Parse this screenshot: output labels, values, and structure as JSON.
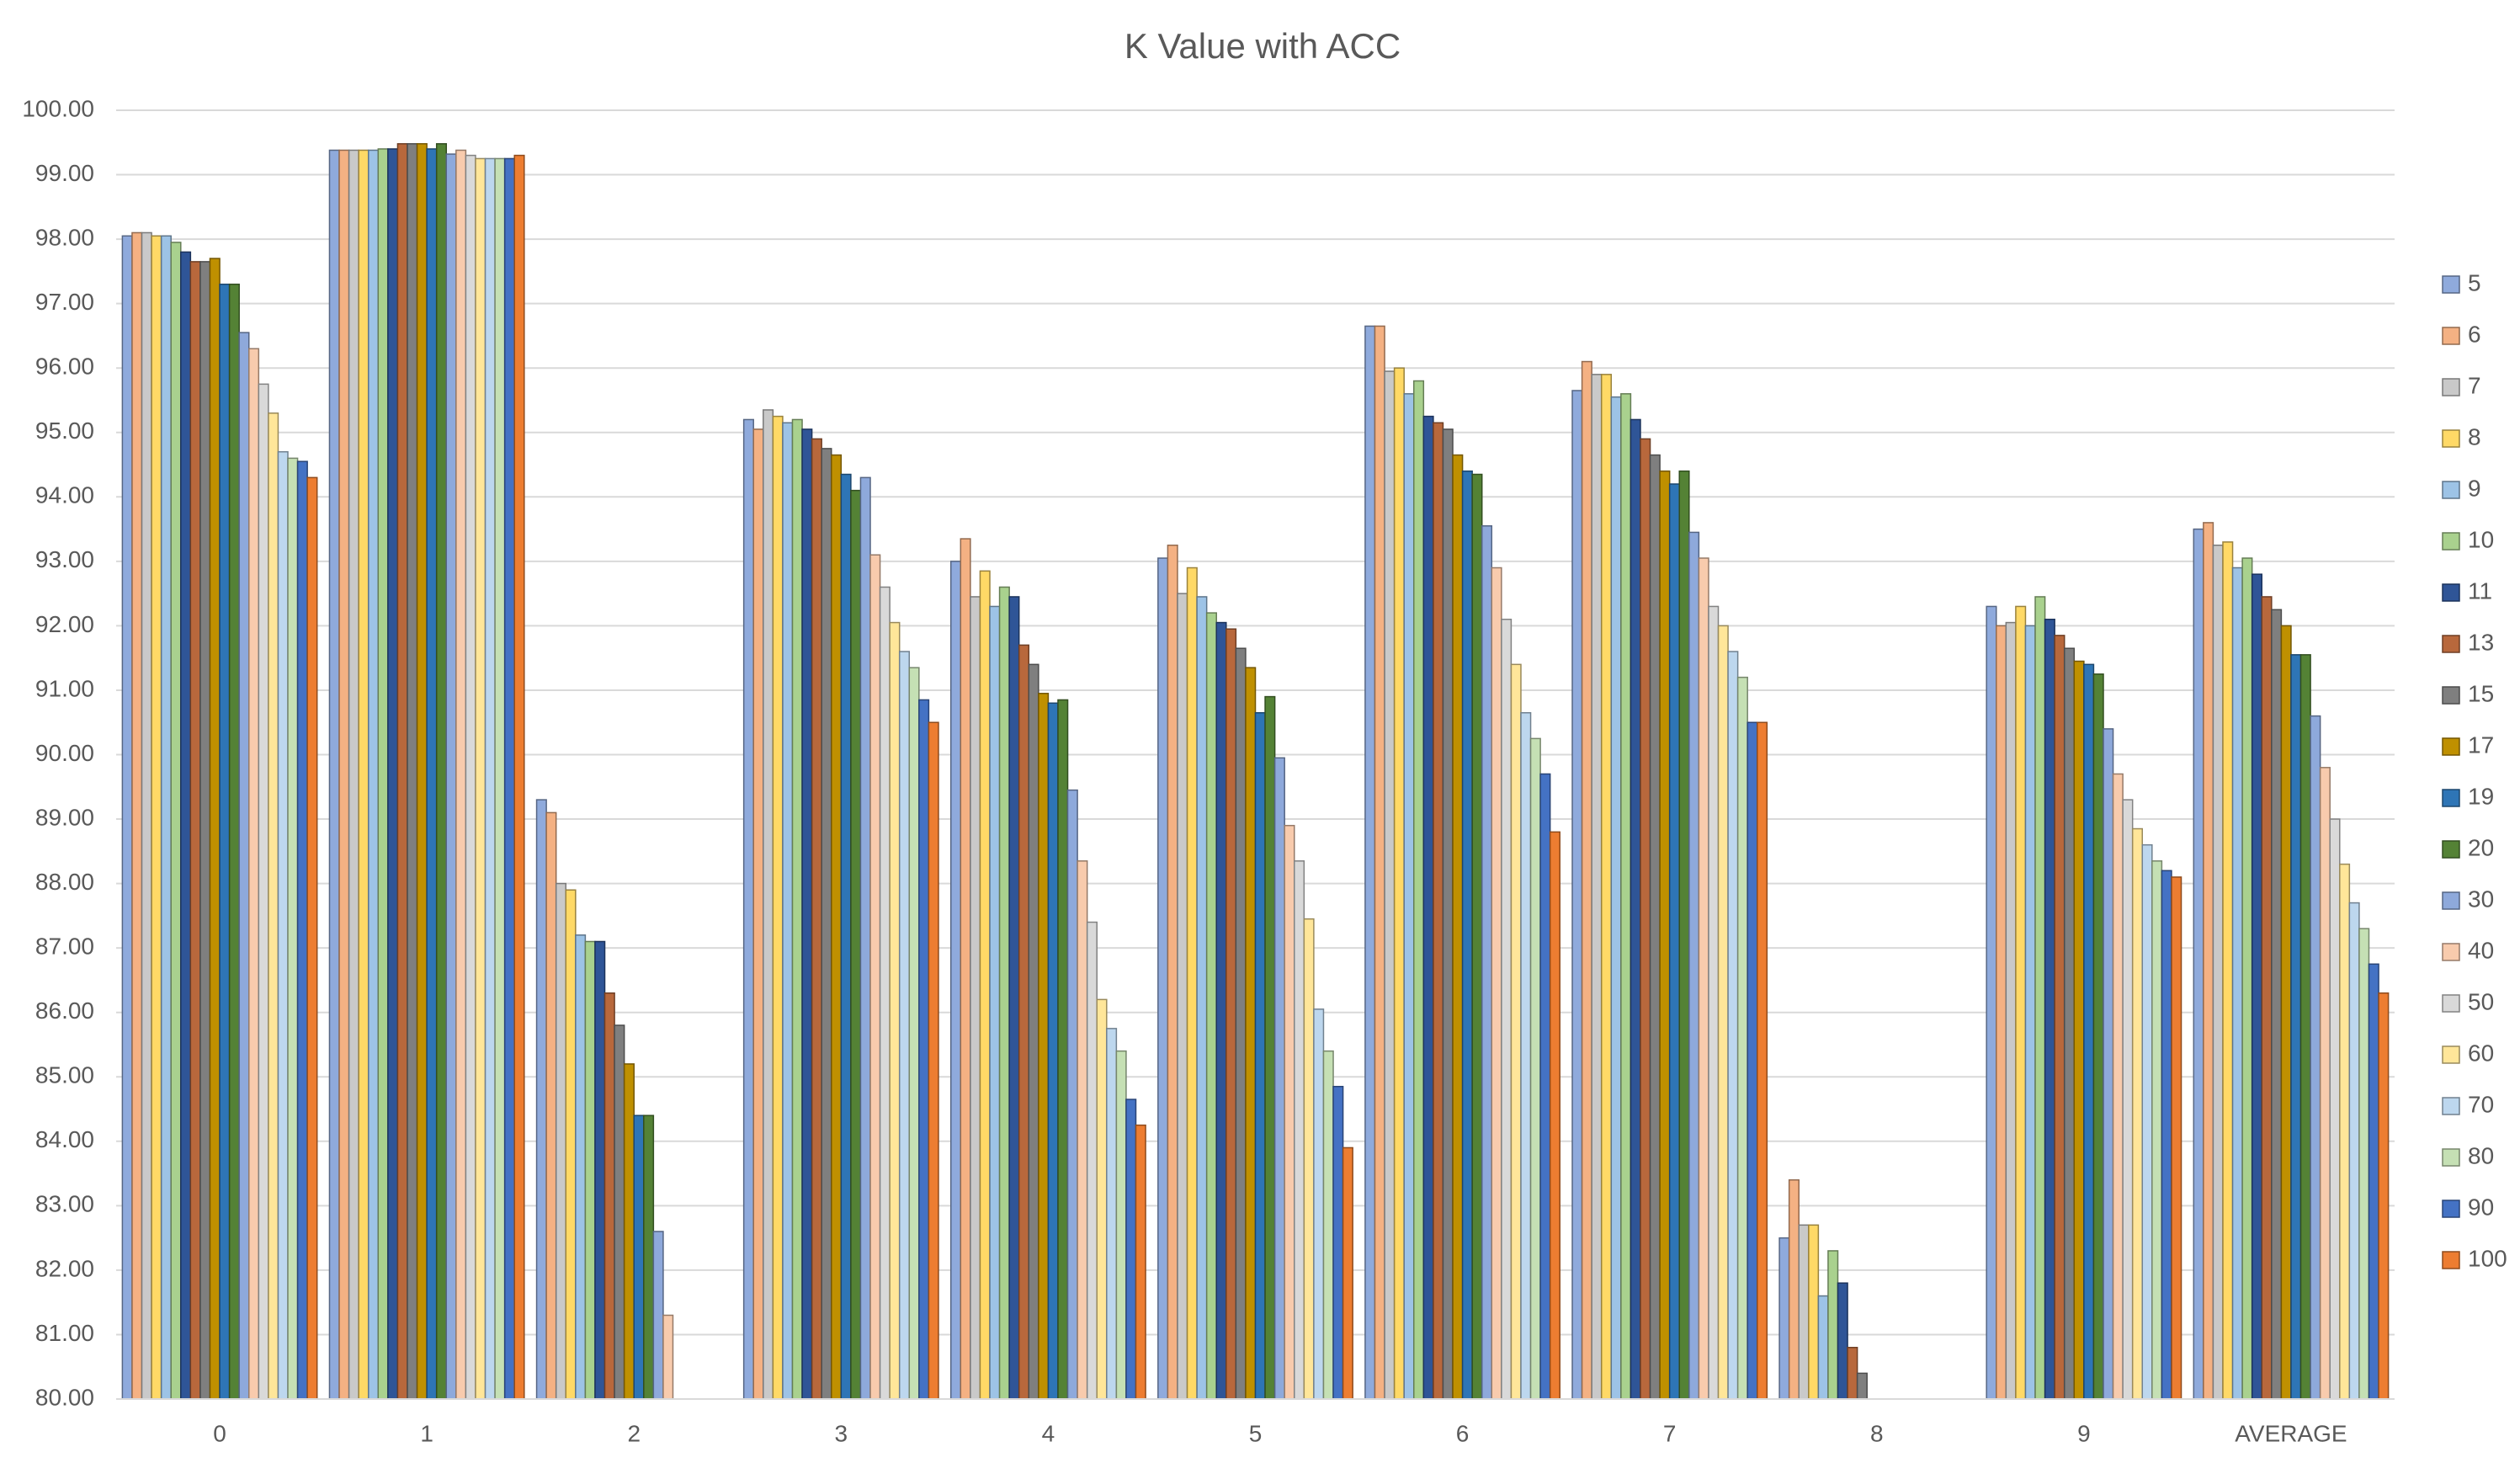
{
  "chart_data": {
    "type": "bar",
    "title": "K Value with ACC",
    "categories": [
      "0",
      "1",
      "2",
      "3",
      "4",
      "5",
      "6",
      "7",
      "8",
      "9",
      "AVERAGE"
    ],
    "ylim": [
      80,
      100
    ],
    "yticks": [
      {
        "value": 80,
        "label": "80.00"
      },
      {
        "value": 81,
        "label": "81.00"
      },
      {
        "value": 82,
        "label": "82.00"
      },
      {
        "value": 83,
        "label": "83.00"
      },
      {
        "value": 84,
        "label": "84.00"
      },
      {
        "value": 85,
        "label": "85.00"
      },
      {
        "value": 86,
        "label": "86.00"
      },
      {
        "value": 87,
        "label": "87.00"
      },
      {
        "value": 88,
        "label": "88.00"
      },
      {
        "value": 89,
        "label": "89.00"
      },
      {
        "value": 90,
        "label": "90.00"
      },
      {
        "value": 91,
        "label": "91.00"
      },
      {
        "value": 92,
        "label": "92.00"
      },
      {
        "value": 93,
        "label": "93.00"
      },
      {
        "value": 94,
        "label": "94.00"
      },
      {
        "value": 95,
        "label": "95.00"
      },
      {
        "value": 96,
        "label": "96.00"
      },
      {
        "value": 97,
        "label": "97.00"
      },
      {
        "value": 98,
        "label": "98.00"
      },
      {
        "value": 99,
        "label": "99.00"
      },
      {
        "value": 100,
        "label": "100.00"
      }
    ],
    "grid": true,
    "legend": "right",
    "series": [
      {
        "name": "5",
        "color": "#8faadc",
        "values": [
          98.05,
          99.38,
          89.3,
          95.2,
          93.0,
          93.05,
          96.65,
          95.65,
          82.5,
          92.3,
          93.5
        ]
      },
      {
        "name": "6",
        "color": "#f4b183",
        "values": [
          98.1,
          99.38,
          89.1,
          95.05,
          93.35,
          93.25,
          96.65,
          96.1,
          83.4,
          92.0,
          93.6
        ]
      },
      {
        "name": "7",
        "color": "#c9c9c9",
        "values": [
          98.1,
          99.38,
          88.0,
          95.35,
          92.45,
          92.5,
          95.95,
          95.9,
          82.7,
          92.05,
          93.25
        ]
      },
      {
        "name": "8",
        "color": "#ffd966",
        "values": [
          98.05,
          99.38,
          87.9,
          95.25,
          92.85,
          92.9,
          96.0,
          95.9,
          82.7,
          92.3,
          93.3
        ]
      },
      {
        "name": "9",
        "color": "#9dc3e6",
        "values": [
          98.05,
          99.38,
          87.2,
          95.15,
          92.3,
          92.45,
          95.6,
          95.55,
          81.6,
          92.0,
          92.9
        ]
      },
      {
        "name": "10",
        "color": "#a9d18e",
        "values": [
          97.95,
          99.4,
          87.1,
          95.2,
          92.6,
          92.2,
          95.8,
          95.6,
          82.3,
          92.45,
          93.05
        ]
      },
      {
        "name": "11",
        "color": "#2f5597",
        "values": [
          97.8,
          99.4,
          87.1,
          95.05,
          92.45,
          92.05,
          95.25,
          95.2,
          81.8,
          92.1,
          92.8
        ]
      },
      {
        "name": "13",
        "color": "#b8683c",
        "values": [
          97.65,
          99.48,
          86.3,
          94.9,
          91.7,
          91.95,
          95.15,
          94.9,
          80.8,
          91.85,
          92.45
        ]
      },
      {
        "name": "15",
        "color": "#7f7f7f",
        "values": [
          97.65,
          99.48,
          85.8,
          94.75,
          91.4,
          91.65,
          95.05,
          94.65,
          80.4,
          91.65,
          92.25
        ]
      },
      {
        "name": "17",
        "color": "#bf9000",
        "values": [
          97.7,
          99.48,
          85.2,
          94.65,
          90.95,
          91.35,
          94.65,
          94.4,
          null,
          91.45,
          92.0
        ]
      },
      {
        "name": "19",
        "color": "#2e75b6",
        "values": [
          97.3,
          99.4,
          84.4,
          94.35,
          90.8,
          90.65,
          94.4,
          94.2,
          null,
          91.4,
          91.55
        ]
      },
      {
        "name": "20",
        "color": "#548235",
        "values": [
          97.3,
          99.48,
          84.4,
          94.1,
          90.85,
          90.9,
          94.35,
          94.4,
          null,
          91.25,
          91.55
        ]
      },
      {
        "name": "30",
        "color": "#8ea9db",
        "values": [
          96.55,
          99.32,
          82.6,
          94.3,
          89.45,
          89.95,
          93.55,
          93.45,
          null,
          90.4,
          90.6
        ]
      },
      {
        "name": "40",
        "color": "#f8cbad",
        "values": [
          96.3,
          99.38,
          81.3,
          93.1,
          88.35,
          88.9,
          92.9,
          93.05,
          null,
          89.7,
          89.8
        ]
      },
      {
        "name": "50",
        "color": "#d9d9d9",
        "values": [
          95.75,
          99.3,
          null,
          92.6,
          87.4,
          88.35,
          92.1,
          92.3,
          null,
          89.3,
          89.0
        ]
      },
      {
        "name": "60",
        "color": "#ffe699",
        "values": [
          95.3,
          99.25,
          null,
          92.05,
          86.2,
          87.45,
          91.4,
          92.0,
          null,
          88.85,
          88.3
        ]
      },
      {
        "name": "70",
        "color": "#bdd7ee",
        "values": [
          94.7,
          99.25,
          null,
          91.6,
          85.75,
          86.05,
          90.65,
          91.6,
          null,
          88.6,
          87.7
        ]
      },
      {
        "name": "80",
        "color": "#c5e0b4",
        "values": [
          94.6,
          99.25,
          null,
          91.35,
          85.4,
          85.4,
          90.25,
          91.2,
          null,
          88.35,
          87.3
        ]
      },
      {
        "name": "90",
        "color": "#4472c4",
        "values": [
          94.55,
          99.25,
          null,
          90.85,
          84.65,
          84.85,
          89.7,
          90.5,
          null,
          88.2,
          86.75
        ]
      },
      {
        "name": "100",
        "color": "#ed7d31",
        "values": [
          94.3,
          99.3,
          null,
          90.5,
          84.25,
          83.9,
          88.8,
          90.5,
          null,
          88.1,
          86.3
        ]
      }
    ]
  }
}
